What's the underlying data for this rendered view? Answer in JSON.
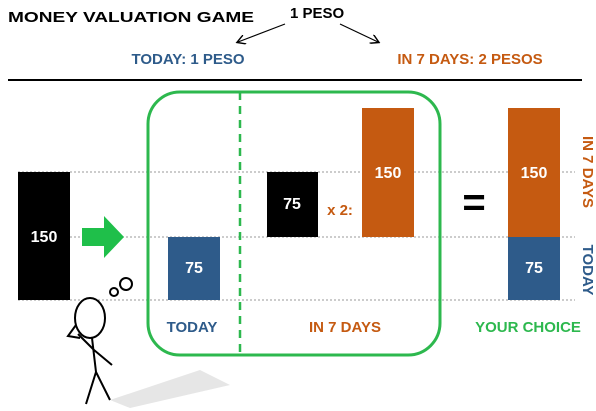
{
  "header": {
    "title": "MONEY VALUATION GAME",
    "center": "1 PESO",
    "left": "TODAY: 1 PESO",
    "right": "IN 7 DAYS: 2 PESOS"
  },
  "blocks": {
    "start": "150",
    "today": "75",
    "later_base": "75",
    "multiplier": "x 2:",
    "later": "150",
    "equals": "=",
    "choice_later": "150",
    "choice_today": "75"
  },
  "labels": {
    "today": "TODAY",
    "later": "IN 7 DAYS",
    "choice": "YOUR CHOICE",
    "side_later": "IN 7 DAYS",
    "side_today": "TODAY"
  }
}
